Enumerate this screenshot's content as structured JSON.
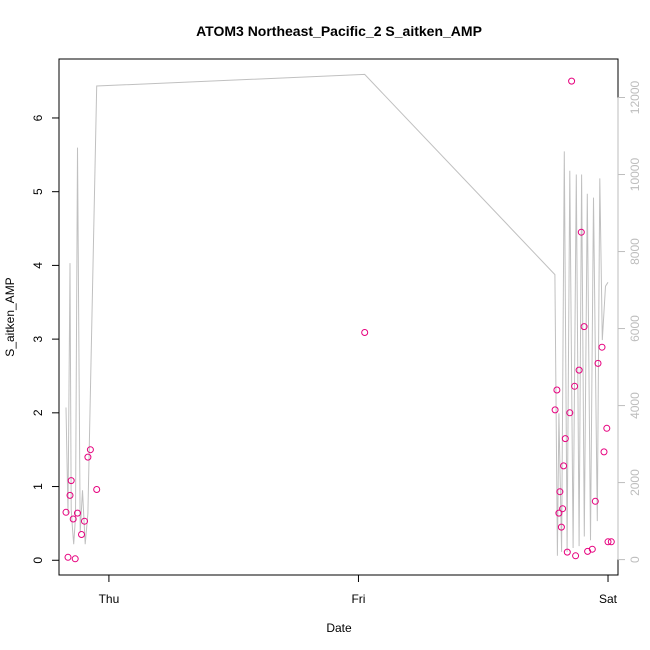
{
  "chart_data": {
    "type": "scatter",
    "title": "ATOM3 Northeast_Pacific_2 S_aitken_AMP",
    "xlabel": "Date",
    "ylabel": "S_aitken_AMP",
    "x_ticks": [
      {
        "label": "Thu",
        "value": 0.0
      },
      {
        "label": "Fri",
        "value": 1.0
      },
      {
        "label": "Sat",
        "value": 2.0
      }
    ],
    "y_left": {
      "lim": [
        -0.2,
        6.8
      ],
      "ticks": [
        0,
        1,
        2,
        3,
        4,
        5,
        6
      ]
    },
    "y_right": {
      "lim": [
        -400,
        13000
      ],
      "ticks": [
        0,
        2000,
        4000,
        6000,
        8000,
        10000,
        12000
      ],
      "color": "#bdbdbd"
    },
    "x_lim": [
      -0.2,
      2.04
    ],
    "grid": false,
    "series": [
      {
        "role": "points",
        "axis": "left",
        "color": "#e6007e",
        "marker": "open-circle",
        "x": [
          -0.172,
          -0.164,
          -0.156,
          -0.151,
          -0.143,
          -0.135,
          -0.126,
          -0.11,
          -0.098,
          -0.084,
          -0.074,
          -0.049,
          1.025,
          1.788,
          1.795,
          1.803,
          1.807,
          1.813,
          1.818,
          1.822,
          1.829,
          1.837,
          1.847,
          1.854,
          1.866,
          1.87,
          1.884,
          1.893,
          1.904,
          1.918,
          1.937,
          1.949,
          1.96,
          1.976,
          1.984,
          1.995,
          2.0,
          2.013
        ],
        "y": [
          0.65,
          0.04,
          0.88,
          1.08,
          0.56,
          0.02,
          0.64,
          0.35,
          0.53,
          1.4,
          1.5,
          0.96,
          3.09,
          2.04,
          2.31,
          0.64,
          0.93,
          0.45,
          0.7,
          1.28,
          1.65,
          0.11,
          2.0,
          6.5,
          2.36,
          0.06,
          2.58,
          4.45,
          3.17,
          0.12,
          0.15,
          0.8,
          2.67,
          2.89,
          1.47,
          1.79,
          0.25,
          0.25
        ]
      },
      {
        "role": "line",
        "axis": "right",
        "color": "#c0c0c0",
        "x": [
          -0.172,
          -0.164,
          -0.156,
          -0.151,
          -0.146,
          -0.141,
          -0.134,
          -0.126,
          -0.115,
          -0.106,
          -0.095,
          -0.084,
          -0.049,
          1.025,
          1.787,
          1.797,
          1.803,
          1.814,
          1.825,
          1.836,
          1.847,
          1.86,
          1.873,
          1.884,
          1.894,
          1.905,
          1.917,
          1.93,
          1.942,
          1.957,
          1.967,
          1.977,
          1.99,
          2.0
        ],
        "y": [
          3950,
          1200,
          7700,
          1300,
          800,
          400,
          1100,
          10700,
          700,
          1800,
          400,
          1200,
          12300,
          12600,
          7400,
          100,
          3800,
          200,
          10600,
          200,
          10100,
          300,
          10000,
          350,
          10000,
          600,
          9500,
          500,
          9400,
          1000,
          9900,
          5700,
          7100,
          7200
        ]
      }
    ]
  }
}
